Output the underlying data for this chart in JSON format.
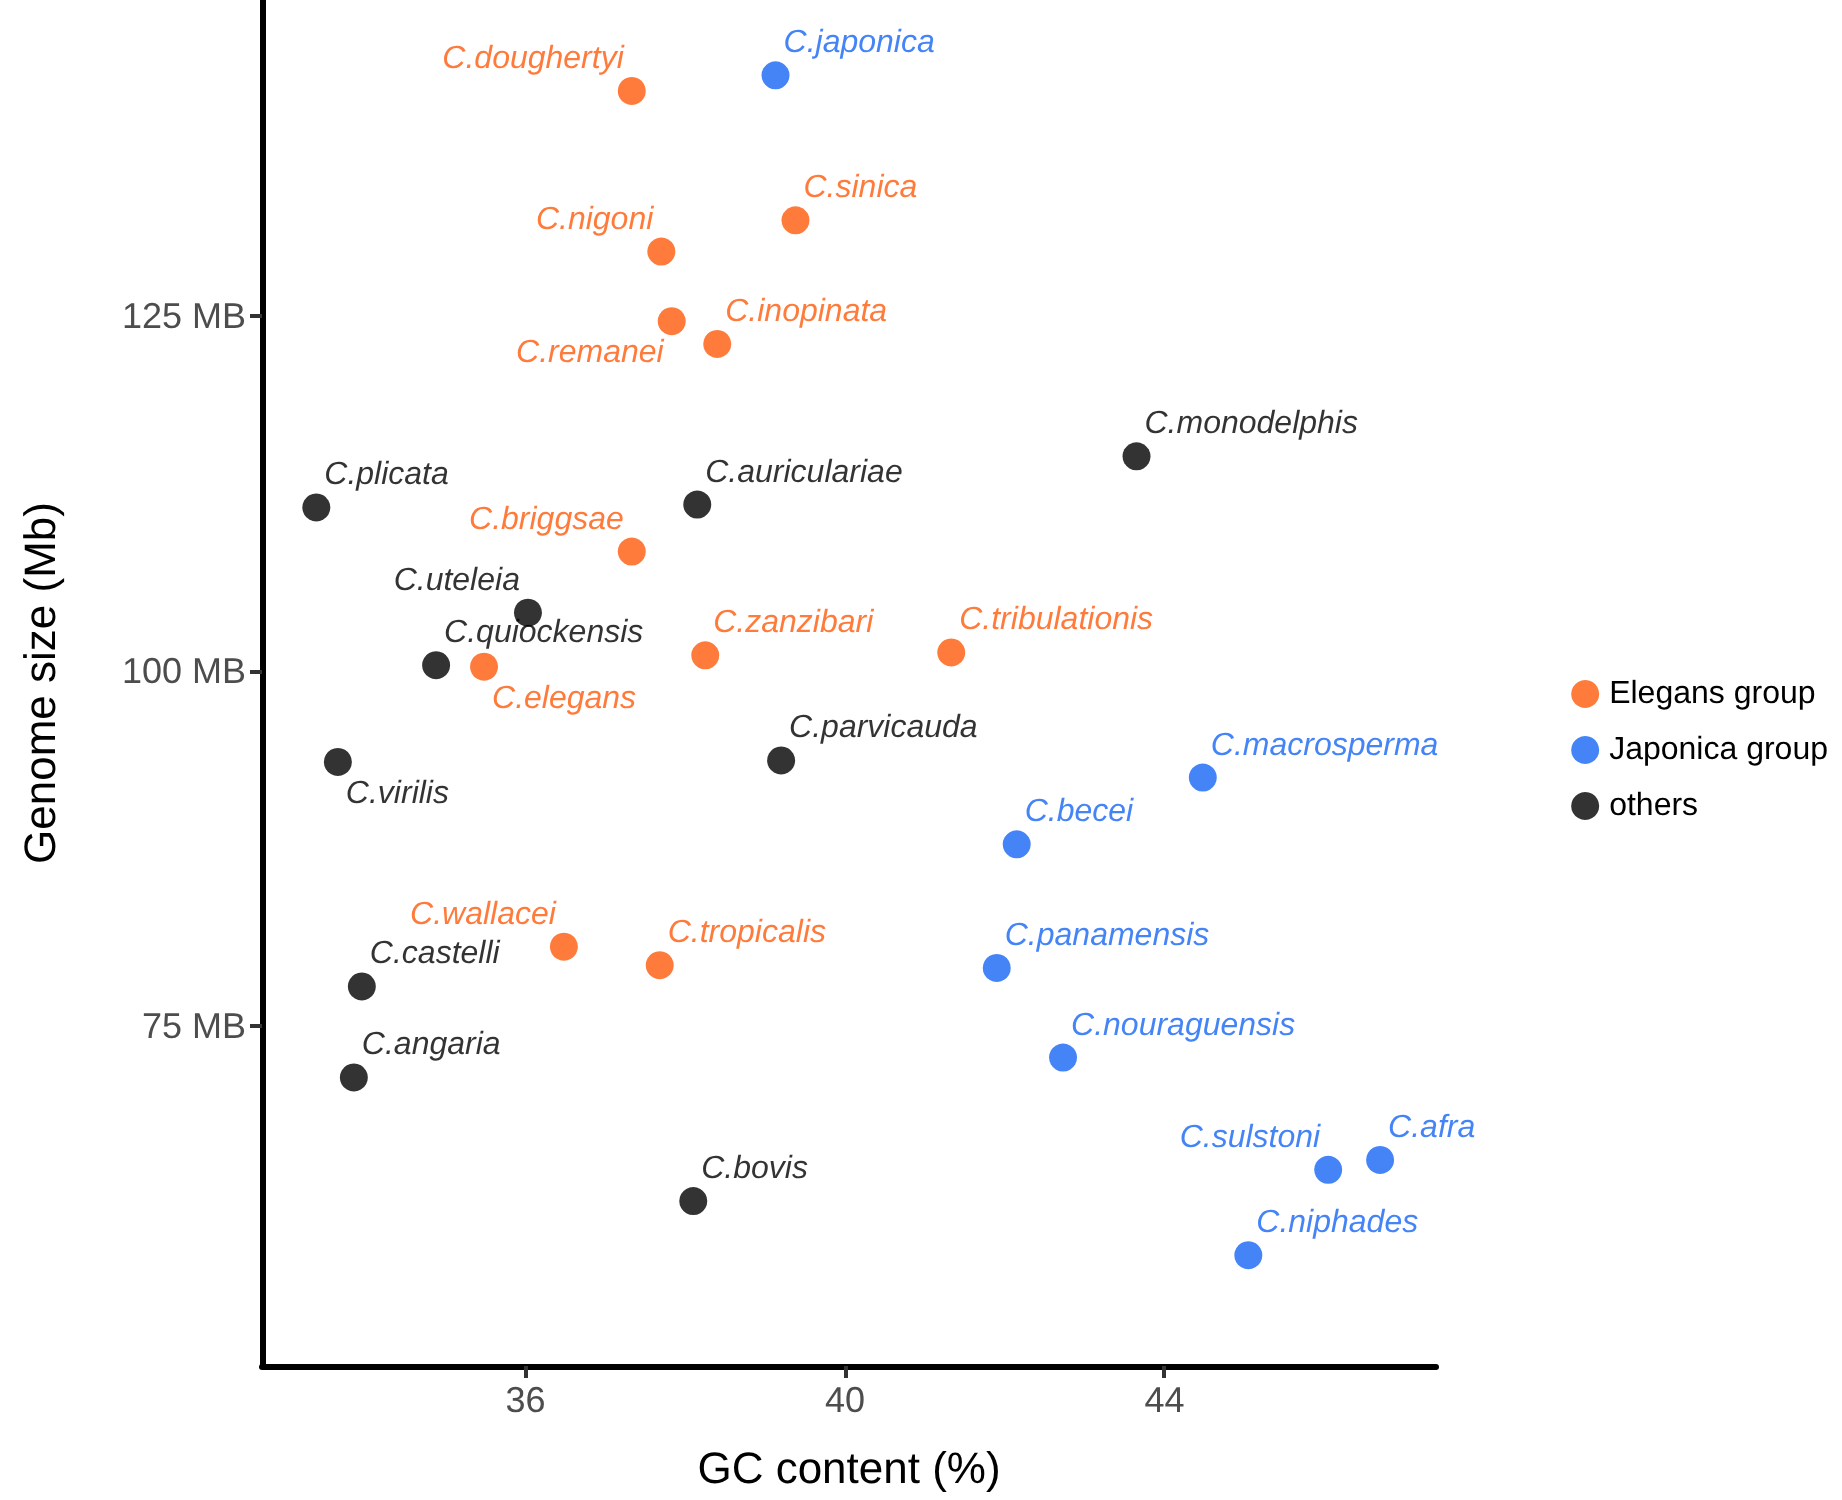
{
  "chart_data": {
    "type": "scatter",
    "xlabel": "GC content (%)",
    "ylabel": "Genome size (Mb)",
    "xlim": [
      32.7,
      47.4
    ],
    "xticks": [
      36,
      40,
      44
    ],
    "ylim": [
      51.1,
      147.2
    ],
    "yticks": [
      {
        "value": 75,
        "label": "75 MB"
      },
      {
        "value": 100,
        "label": "100 MB"
      },
      {
        "value": 125,
        "label": "125 MB"
      }
    ],
    "grid": false,
    "legend": "right",
    "marker": "circle",
    "series": [
      {
        "name": "Elegans group",
        "color": "#ff5a0a",
        "x": [
          37.33,
          39.38,
          37.7,
          37.83,
          38.4,
          37.33,
          38.25,
          41.33,
          35.48,
          36.48,
          37.68
        ],
        "values": [
          140.8,
          131.7,
          129.5,
          124.6,
          123.0,
          108.4,
          101.1,
          101.3,
          100.3,
          80.6,
          79.3
        ]
      },
      {
        "name": "Japonica group",
        "color": "#1565f5",
        "x": [
          39.13,
          44.48,
          42.15,
          41.9,
          42.73,
          46.05,
          46.7,
          45.05
        ],
        "values": [
          141.9,
          92.5,
          87.8,
          79.1,
          72.8,
          64.9,
          65.6,
          58.9
        ]
      },
      {
        "name": "others",
        "color": "#000000",
        "x": [
          33.38,
          38.15,
          43.65,
          36.03,
          34.88,
          33.65,
          39.2,
          33.95,
          33.85,
          38.1
        ],
        "values": [
          111.5,
          111.7,
          115.1,
          104.1,
          100.4,
          93.6,
          93.7,
          77.8,
          71.4,
          62.7
        ]
      }
    ],
    "annotations": [
      {
        "text": "C.doughertyi",
        "x": 37.33,
        "y": 140.8
      },
      {
        "text": "C.sinica",
        "x": 39.38,
        "y": 131.7
      },
      {
        "text": "C.nigoni",
        "x": 37.7,
        "y": 129.5
      },
      {
        "text": "C.remanei",
        "x": 37.83,
        "y": 124.6
      },
      {
        "text": "C.inopinata",
        "x": 38.4,
        "y": 123.0
      },
      {
        "text": "C.briggsae",
        "x": 37.33,
        "y": 108.4
      },
      {
        "text": "C.zanzibari",
        "x": 38.25,
        "y": 101.1
      },
      {
        "text": "C.tribulationis",
        "x": 41.33,
        "y": 101.3
      },
      {
        "text": "C.elegans",
        "x": 35.48,
        "y": 100.3
      },
      {
        "text": "C.wallacei",
        "x": 36.48,
        "y": 80.6
      },
      {
        "text": "C.tropicalis",
        "x": 37.68,
        "y": 79.3
      },
      {
        "text": "C.japonica",
        "x": 39.13,
        "y": 141.9
      },
      {
        "text": "C.macrosperma",
        "x": 44.48,
        "y": 92.5
      },
      {
        "text": "C.becei",
        "x": 42.15,
        "y": 87.8
      },
      {
        "text": "C.panamensis",
        "x": 41.9,
        "y": 79.1
      },
      {
        "text": "C.nouraguensis",
        "x": 42.73,
        "y": 72.8
      },
      {
        "text": "C.sulstoni",
        "x": 46.05,
        "y": 64.9
      },
      {
        "text": "C.afra",
        "x": 46.7,
        "y": 65.6
      },
      {
        "text": "C.niphades",
        "x": 45.05,
        "y": 58.9
      },
      {
        "text": "C.plicata",
        "x": 33.38,
        "y": 111.5
      },
      {
        "text": "C.auriculariae",
        "x": 38.15,
        "y": 111.7
      },
      {
        "text": "C.monodelphis",
        "x": 43.65,
        "y": 115.1
      },
      {
        "text": "C.uteleia",
        "x": 36.03,
        "y": 104.1
      },
      {
        "text": "C.quiockensis",
        "x": 34.88,
        "y": 100.4
      },
      {
        "text": "C.virilis",
        "x": 33.65,
        "y": 93.6
      },
      {
        "text": "C.parvicauda",
        "x": 39.2,
        "y": 93.7
      },
      {
        "text": "C.castelli",
        "x": 33.95,
        "y": 77.8
      },
      {
        "text": "C.angaria",
        "x": 33.85,
        "y": 71.4
      },
      {
        "text": "C.bovis",
        "x": 38.1,
        "y": 62.7
      }
    ]
  }
}
